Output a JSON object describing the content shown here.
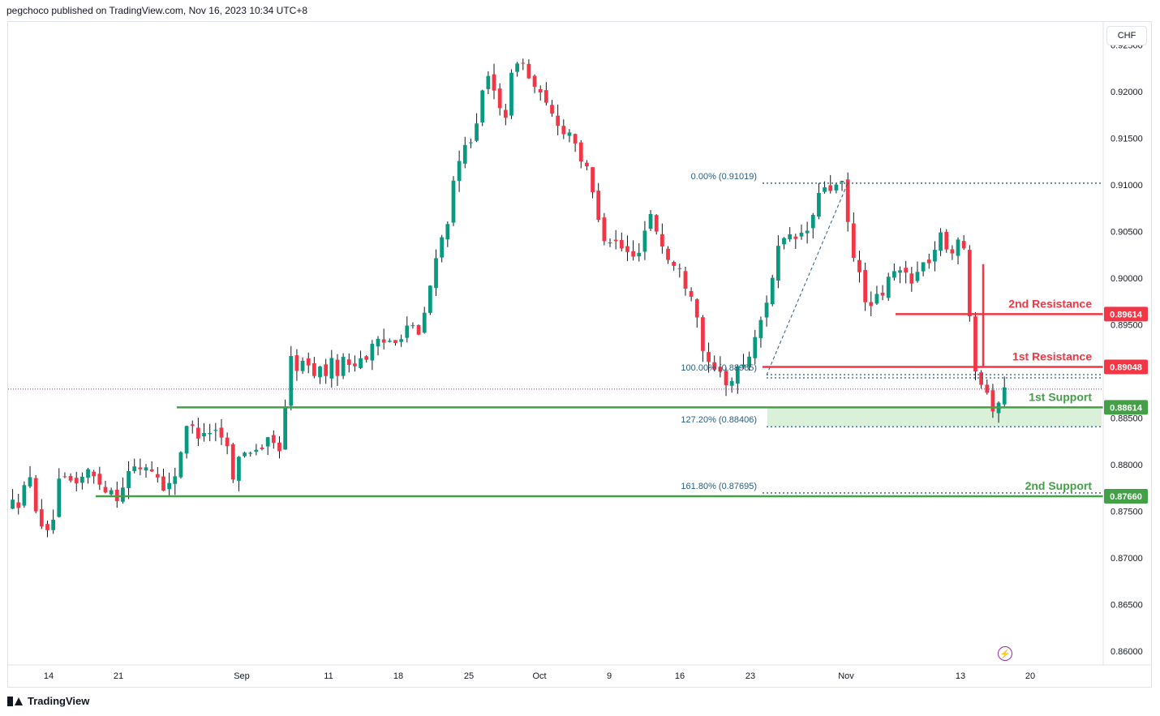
{
  "header": {
    "publisher_text": "pegchoco published on TradingView.com, Nov 16, 2023 10:34 UTC+8"
  },
  "footer": {
    "brand": "TradingView",
    "logo_icon": "tradingview-logo-icon"
  },
  "price_scale": {
    "currency": "CHF"
  },
  "realtime_icon": "lightning-icon",
  "colors": {
    "up": "#089981",
    "down": "#f23645",
    "resistance": "#f23645",
    "support": "#43a047",
    "fib": "#2a5c7e",
    "zone": "#daf0d9",
    "current": "#9c27b0"
  },
  "chart_data": {
    "type": "candlestick",
    "symbol_quote": "CHF",
    "ylim": [
      0.8585,
      0.9275
    ],
    "y_ticks": [
      "0.92500",
      "0.92000",
      "0.91500",
      "0.91000",
      "0.90500",
      "0.90000",
      "0.89500",
      "0.88500",
      "0.88000",
      "0.87500",
      "0.87000",
      "0.86500",
      "0.86000"
    ],
    "x_ticks": [
      "14",
      "21",
      "Sep",
      "11",
      "18",
      "25",
      "Oct",
      "9",
      "16",
      "23",
      "Nov",
      "13",
      "20"
    ],
    "price_path": [
      [
        0,
        0.8755
      ],
      [
        3,
        0.878
      ],
      [
        6,
        0.872
      ],
      [
        8,
        0.8775
      ],
      [
        13,
        0.879
      ],
      [
        18,
        0.877
      ],
      [
        20,
        0.879
      ],
      [
        23,
        0.88
      ],
      [
        27,
        0.8775
      ],
      [
        30,
        0.8835
      ],
      [
        33,
        0.884
      ],
      [
        36,
        0.8835
      ],
      [
        38,
        0.8795
      ],
      [
        41,
        0.882
      ],
      [
        46,
        0.882
      ],
      [
        48,
        0.891
      ],
      [
        53,
        0.89
      ],
      [
        58,
        0.891
      ],
      [
        63,
        0.8925
      ],
      [
        65,
        0.8935
      ],
      [
        68,
        0.895
      ],
      [
        70,
        0.8935
      ],
      [
        72,
        0.899
      ],
      [
        77,
        0.912
      ],
      [
        82,
        0.921
      ],
      [
        85,
        0.918
      ],
      [
        87,
        0.924
      ],
      [
        92,
        0.918
      ],
      [
        97,
        0.915
      ],
      [
        102,
        0.905
      ],
      [
        107,
        0.902
      ],
      [
        110,
        0.907
      ],
      [
        113,
        0.902
      ],
      [
        117,
        0.899
      ],
      [
        120,
        0.89
      ],
      [
        124,
        0.889
      ],
      [
        128,
        0.893
      ],
      [
        132,
        0.903
      ],
      [
        137,
        0.905
      ],
      [
        140,
        0.91
      ],
      [
        143,
        0.9095
      ],
      [
        145,
        0.902
      ],
      [
        148,
        0.8965
      ],
      [
        152,
        0.9005
      ],
      [
        156,
        0.9005
      ],
      [
        160,
        0.904
      ],
      [
        164,
        0.903
      ],
      [
        166,
        0.891
      ],
      [
        169,
        0.8865
      ],
      [
        171,
        0.8875
      ]
    ],
    "levels": [
      {
        "label": "2nd Resistance",
        "value": "0.89614",
        "kind": "resistance"
      },
      {
        "label": "1st Resistance",
        "value": "0.89048",
        "kind": "resistance"
      },
      {
        "label": "1st Support",
        "value": "0.88614",
        "kind": "support"
      },
      {
        "label": "2nd Support",
        "value": "0.87660",
        "kind": "support"
      }
    ],
    "fibonacci": [
      {
        "label": "0.00% (0.91019)"
      },
      {
        "label": "100.00% (0.88965)"
      },
      {
        "label": "127.20% (0.88406)"
      },
      {
        "label": "161.80% (0.87695)"
      }
    ],
    "current_price": 0.8881
  }
}
